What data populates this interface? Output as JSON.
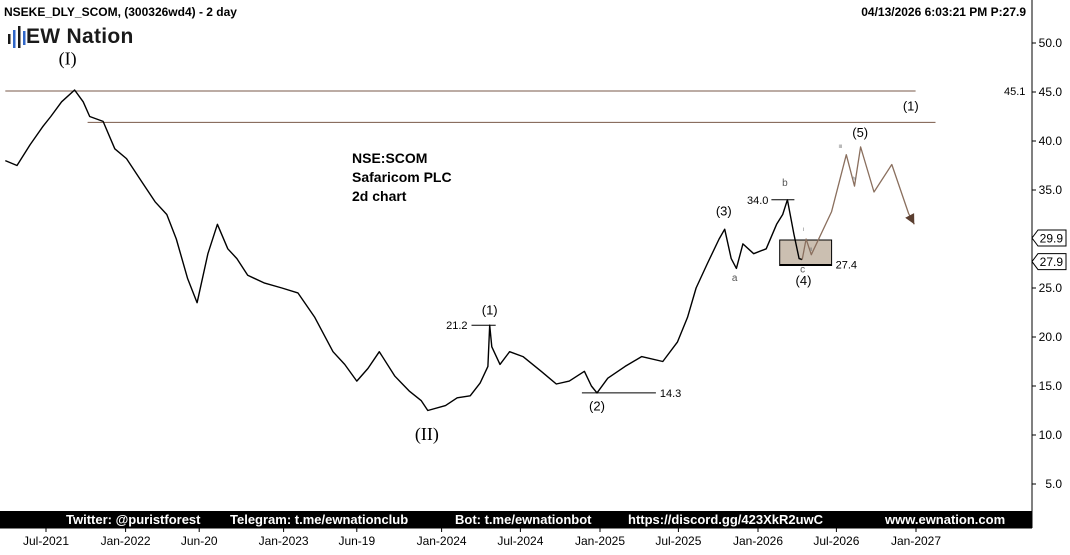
{
  "header": {
    "symbol": "NSEKE_DLY_SCOM, (300326wd4) - 2 day",
    "datetime_price": "04/13/2026 6:03:21 PM  P:27.9"
  },
  "logo": {
    "text": "EW Nation",
    "dark": "#1a1a1a",
    "accent": "#2f66c8"
  },
  "annotation": {
    "line1": "NSE:SCOM",
    "line2": "Safaricom PLC",
    "line3": "2d chart"
  },
  "footer": {
    "twitter": "Twitter: @puristforest",
    "telegram": "Telegram: t.me/ewnationclub",
    "bot": "Bot: t.me/ewnationbot",
    "discord": "https://discord.gg/423XkR2uwC",
    "site": "www.ewnation.com"
  },
  "chart_data": {
    "type": "line",
    "title": "NSE:SCOM Safaricom PLC 2d chart",
    "y_scale": "linear",
    "ylim": [
      1.5,
      52.5
    ],
    "y_ticks": [
      "5.0",
      "10.0",
      "15.0",
      "20.0",
      "25.0",
      "30.0",
      "35.0",
      "40.0",
      "45.0",
      "50.0"
    ],
    "x_tick_labels": [
      "Jul-2021",
      "Jan-2022",
      "Jun-20",
      "Jan-2023",
      "Jun-19",
      "Jan-2024",
      "Jul-2024",
      "Jan-2025",
      "Jul-2025",
      "Jan-2026",
      "Jul-2026",
      "Jan-2027"
    ],
    "x_tick_dates": [
      "2021-07-01",
      "2022-01-01",
      "2022-06-20",
      "2023-01-01",
      "2023-06-19",
      "2024-01-01",
      "2024-07-01",
      "2025-01-01",
      "2025-07-01",
      "2026-01-01",
      "2026-07-01",
      "2027-01-01"
    ],
    "price_series": {
      "name": "NSEKE_DLY_SCOM",
      "points": [
        [
          "2021-03-29",
          38.0
        ],
        [
          "2021-04-25",
          37.5
        ],
        [
          "2021-05-25",
          39.6
        ],
        [
          "2021-06-24",
          41.5
        ],
        [
          "2021-07-12",
          42.5
        ],
        [
          "2021-08-06",
          44.0
        ],
        [
          "2021-09-05",
          45.2
        ],
        [
          "2021-09-25",
          44.0
        ],
        [
          "2021-10-10",
          42.5
        ],
        [
          "2021-11-10",
          42.0
        ],
        [
          "2021-12-07",
          39.2
        ],
        [
          "2022-01-03",
          38.2
        ],
        [
          "2022-02-08",
          35.8
        ],
        [
          "2022-03-10",
          33.8
        ],
        [
          "2022-04-06",
          32.5
        ],
        [
          "2022-04-28",
          30.0
        ],
        [
          "2022-05-24",
          26.0
        ],
        [
          "2022-06-15",
          23.5
        ],
        [
          "2022-07-10",
          28.5
        ],
        [
          "2022-08-01",
          31.5
        ],
        [
          "2022-08-25",
          29.0
        ],
        [
          "2022-09-15",
          28.0
        ],
        [
          "2022-10-10",
          26.3
        ],
        [
          "2022-11-18",
          25.5
        ],
        [
          "2022-12-28",
          25.0
        ],
        [
          "2023-02-03",
          24.5
        ],
        [
          "2023-03-14",
          22.0
        ],
        [
          "2023-04-25",
          18.5
        ],
        [
          "2023-05-22",
          17.2
        ],
        [
          "2023-06-19",
          15.5
        ],
        [
          "2023-07-15",
          16.8
        ],
        [
          "2023-08-10",
          18.5
        ],
        [
          "2023-09-15",
          16.0
        ],
        [
          "2023-10-18",
          14.5
        ],
        [
          "2023-11-15",
          13.5
        ],
        [
          "2023-11-30",
          12.5
        ],
        [
          "2024-01-10",
          13.0
        ],
        [
          "2024-02-06",
          13.8
        ],
        [
          "2024-03-07",
          14.0
        ],
        [
          "2024-03-30",
          15.3
        ],
        [
          "2024-04-17",
          17.0
        ],
        [
          "2024-04-21",
          21.2
        ],
        [
          "2024-04-26",
          19.0
        ],
        [
          "2024-05-15",
          17.2
        ],
        [
          "2024-06-06",
          18.5
        ],
        [
          "2024-07-07",
          18.0
        ],
        [
          "2024-08-18",
          16.5
        ],
        [
          "2024-09-22",
          15.2
        ],
        [
          "2024-10-22",
          15.5
        ],
        [
          "2024-11-26",
          16.5
        ],
        [
          "2024-12-12",
          15.0
        ],
        [
          "2024-12-25",
          14.3
        ],
        [
          "2025-01-19",
          15.8
        ],
        [
          "2025-02-28",
          17.0
        ],
        [
          "2025-04-07",
          18.0
        ],
        [
          "2025-05-26",
          17.5
        ],
        [
          "2025-06-29",
          19.5
        ],
        [
          "2025-07-22",
          22.0
        ],
        [
          "2025-08-11",
          25.0
        ],
        [
          "2025-09-06",
          27.5
        ],
        [
          "2025-10-03",
          30.0
        ],
        [
          "2025-10-16",
          31.0
        ],
        [
          "2025-10-31",
          28.0
        ],
        [
          "2025-11-12",
          27.0
        ],
        [
          "2025-11-27",
          29.5
        ],
        [
          "2025-12-22",
          28.5
        ],
        [
          "2026-01-20",
          29.0
        ],
        [
          "2026-02-13",
          31.5
        ],
        [
          "2026-02-27",
          32.5
        ],
        [
          "2026-03-10",
          34.0
        ],
        [
          "2026-03-25",
          30.5
        ],
        [
          "2026-04-06",
          28.0
        ],
        [
          "2026-04-13",
          27.9
        ]
      ]
    },
    "projection": {
      "points": [
        [
          "2026-04-13",
          27.9
        ],
        [
          "2026-04-22",
          30.0
        ],
        [
          "2026-05-04",
          28.4
        ],
        [
          "2026-06-20",
          32.8
        ],
        [
          "2026-07-24",
          38.6
        ],
        [
          "2026-08-12",
          35.4
        ],
        [
          "2026-08-26",
          39.4
        ],
        [
          "2026-09-26",
          34.8
        ],
        [
          "2026-11-06",
          37.6
        ],
        [
          "2026-12-15",
          32.6
        ]
      ],
      "arrow_to": [
        "2026-12-28",
        31.5
      ],
      "sub_labels": [
        [
          "i",
          [
            "2026-04-16",
            30.8
          ]
        ],
        [
          "ii",
          [
            "2026-05-03",
            28.8
          ]
        ],
        [
          "iii",
          [
            "2026-07-10",
            39.3
          ]
        ],
        [
          "iv",
          [
            "2026-08-12",
            36.0
          ]
        ]
      ]
    },
    "horizontal_lines": [
      {
        "y": 45.1,
        "from": "2021-03-29",
        "to": "2026-12-31",
        "label": "45.1"
      },
      {
        "y": 41.9,
        "from": "2021-10-05",
        "to": "2027-02-15"
      },
      {
        "y": 21.2,
        "from": "2024-03-10",
        "to": "2024-05-05",
        "label": "21.2"
      },
      {
        "y": 14.3,
        "from": "2024-11-20",
        "to": "2025-05-10",
        "label": "14.3"
      },
      {
        "y": 34.0,
        "from": "2026-02-01",
        "to": "2026-03-26",
        "label": "34.0"
      },
      {
        "y": 27.4,
        "from": "2026-02-20",
        "to": "2026-06-20",
        "label": "27.4"
      }
    ],
    "support_zone": {
      "y_low": 27.3,
      "y_high": 29.9,
      "from": "2026-02-20",
      "to": "2026-06-20",
      "color": "#cbbfb1"
    },
    "wave_labels": [
      {
        "text": "(I)",
        "date": "2021-08-20",
        "y": 47.8
      },
      {
        "text": "(II)",
        "date": "2023-11-28",
        "y": 9.5
      },
      {
        "text": "(1)",
        "date": "2024-04-21",
        "y": 22.3
      },
      {
        "text": "(2)",
        "date": "2024-12-25",
        "y": 12.5
      },
      {
        "text": "(3)",
        "date": "2025-10-14",
        "y": 32.4
      },
      {
        "text": "(4)",
        "date": "2026-04-16",
        "y": 25.3
      },
      {
        "text": "(5)",
        "date": "2026-08-25",
        "y": 40.4
      },
      {
        "text": "(1)",
        "date": "2026-12-20",
        "y": 43.1
      },
      {
        "text": "a",
        "date": "2025-11-08",
        "y": 25.7
      },
      {
        "text": "b",
        "date": "2026-03-04",
        "y": 35.4
      },
      {
        "text": "c",
        "date": "2026-04-14",
        "y": 26.6
      }
    ],
    "price_flags": [
      {
        "label": "29.9",
        "value": 29.9,
        "fill": "#ffffff"
      },
      {
        "label": "27.9",
        "value": 27.9,
        "fill": "#ffffff"
      }
    ],
    "colors": {
      "price": "#000000",
      "resistance": "#7a5a48",
      "projection": "#8a6f5e",
      "label": "#333333",
      "footer_bg": "#000000",
      "footer_text": "#ffffff"
    },
    "grid": false,
    "legend": "none"
  }
}
